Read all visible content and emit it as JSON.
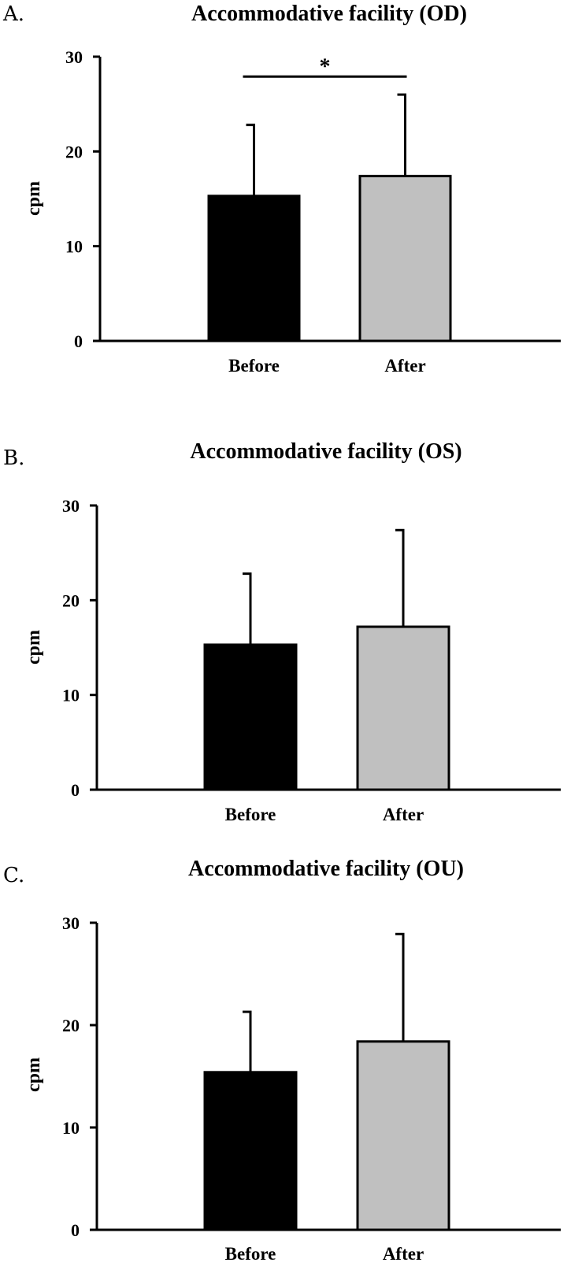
{
  "chart_data": [
    {
      "type": "bar",
      "panel": "A.",
      "title": "Accommodative facility (OD)",
      "ylabel": "cpm",
      "xlabel": "",
      "ylim": [
        0,
        30
      ],
      "yticks": [
        0,
        10,
        20,
        30
      ],
      "categories": [
        "Before",
        "After"
      ],
      "values": [
        15.3,
        17.4
      ],
      "errors": [
        7.5,
        8.6
      ],
      "colors": [
        "#000000",
        "#c0c0c0"
      ],
      "significance": {
        "from": "Before",
        "to": "After",
        "label": "*",
        "y": 27.9
      }
    },
    {
      "type": "bar",
      "panel": "B.",
      "title": "Accommodative facility (OS)",
      "ylabel": "cpm",
      "xlabel": "",
      "ylim": [
        0,
        30
      ],
      "yticks": [
        0,
        10,
        20,
        30
      ],
      "categories": [
        "Before",
        "After"
      ],
      "values": [
        15.3,
        17.2
      ],
      "errors": [
        7.5,
        10.2
      ],
      "colors": [
        "#000000",
        "#c0c0c0"
      ]
    },
    {
      "type": "bar",
      "panel": "C.",
      "title": "Accommodative facility (OU)",
      "ylabel": "cpm",
      "xlabel": "",
      "ylim": [
        0,
        30
      ],
      "yticks": [
        0,
        10,
        20,
        30
      ],
      "categories": [
        "Before",
        "After"
      ],
      "values": [
        15.4,
        18.4
      ],
      "errors": [
        5.9,
        10.5
      ],
      "colors": [
        "#000000",
        "#c0c0c0"
      ]
    }
  ]
}
